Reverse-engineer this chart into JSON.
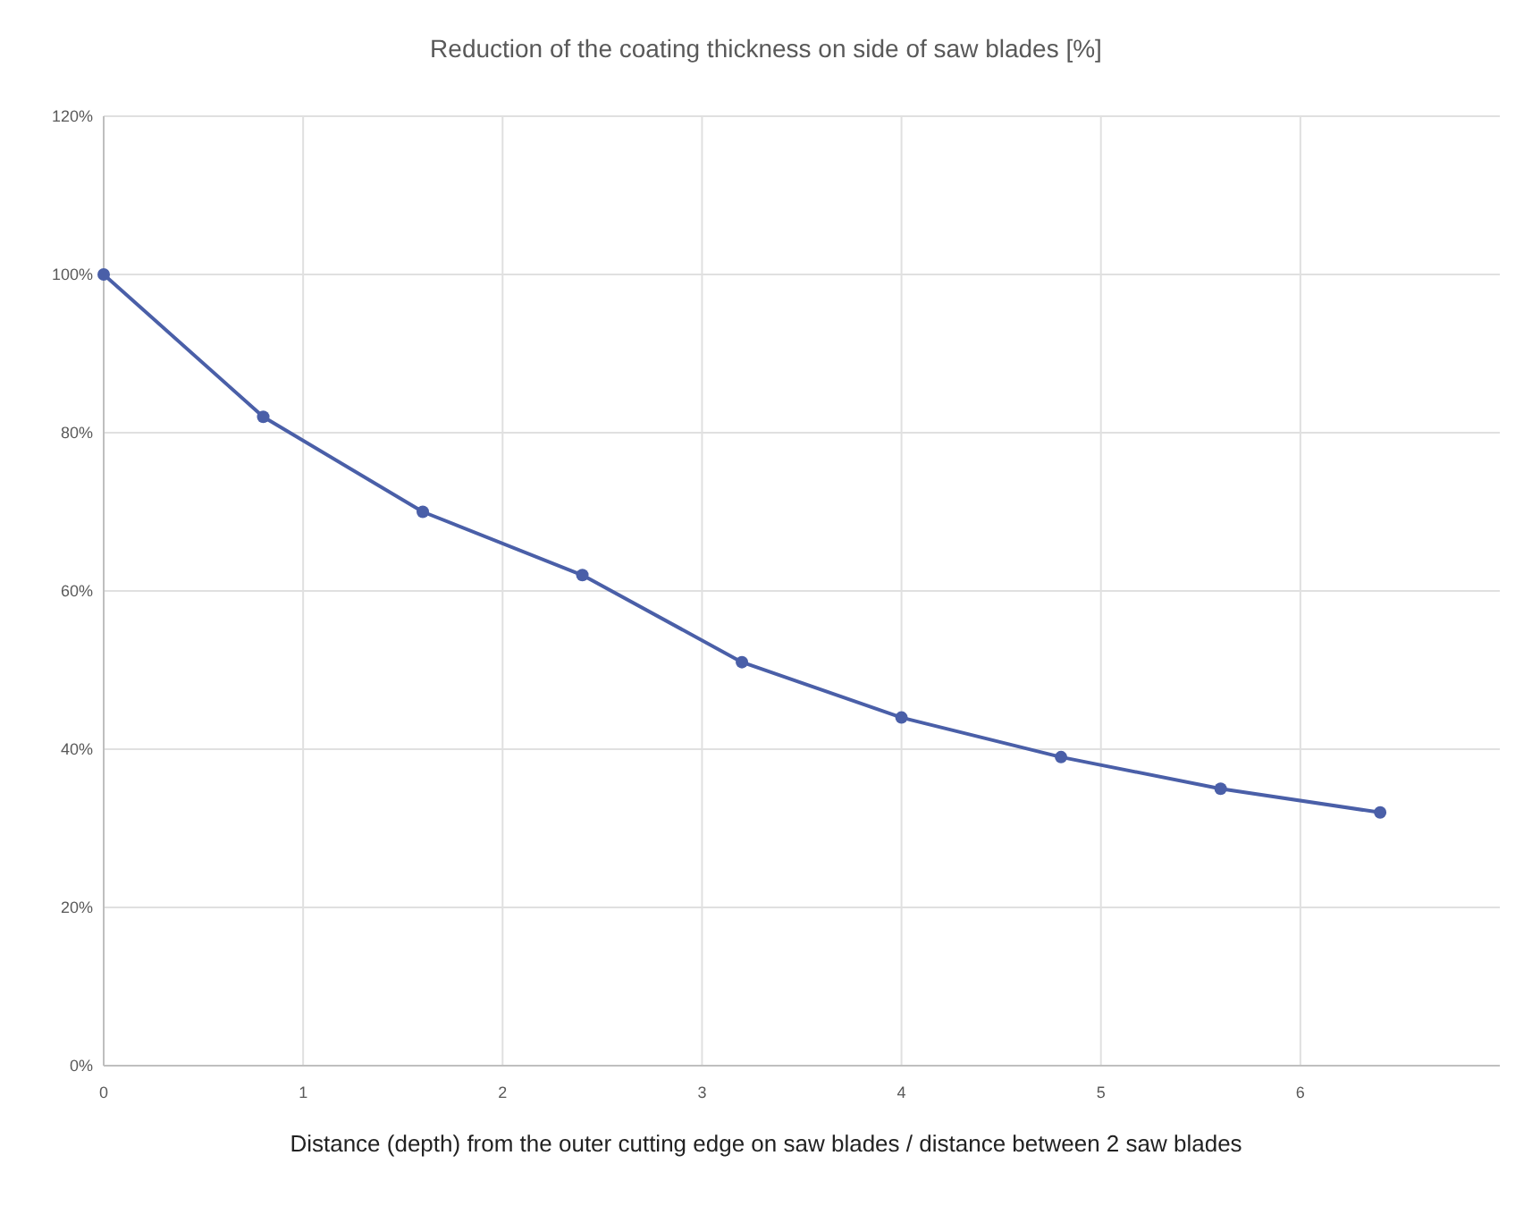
{
  "chart_data": {
    "type": "line",
    "title": "Reduction of the coating thickness on side of saw blades [%]",
    "xlabel": "Distance (depth) from the outer cutting edge on saw blades / distance between 2 saw blades",
    "x": [
      0,
      0.8,
      1.6,
      2.4,
      3.2,
      4,
      4.8,
      5.6,
      6.4
    ],
    "series": [
      {
        "color": "#4a5fa8",
        "values": [
          100,
          82,
          70,
          62,
          51,
          44,
          39,
          35,
          32
        ]
      }
    ],
    "xlim": [
      0,
      7
    ],
    "xticks": [
      0,
      1,
      2,
      3,
      4,
      5,
      6
    ],
    "ylim": [
      0,
      120
    ],
    "yticks": [
      {
        "value": 0,
        "label": "0%"
      },
      {
        "value": 20,
        "label": "20%"
      },
      {
        "value": 40,
        "label": "40%"
      },
      {
        "value": 60,
        "label": "60%"
      },
      {
        "value": 80,
        "label": "80%"
      },
      {
        "value": 100,
        "label": "100%"
      },
      {
        "value": 120,
        "label": "120%"
      }
    ],
    "grid": true,
    "marker": "circle",
    "line_style": "solid"
  }
}
